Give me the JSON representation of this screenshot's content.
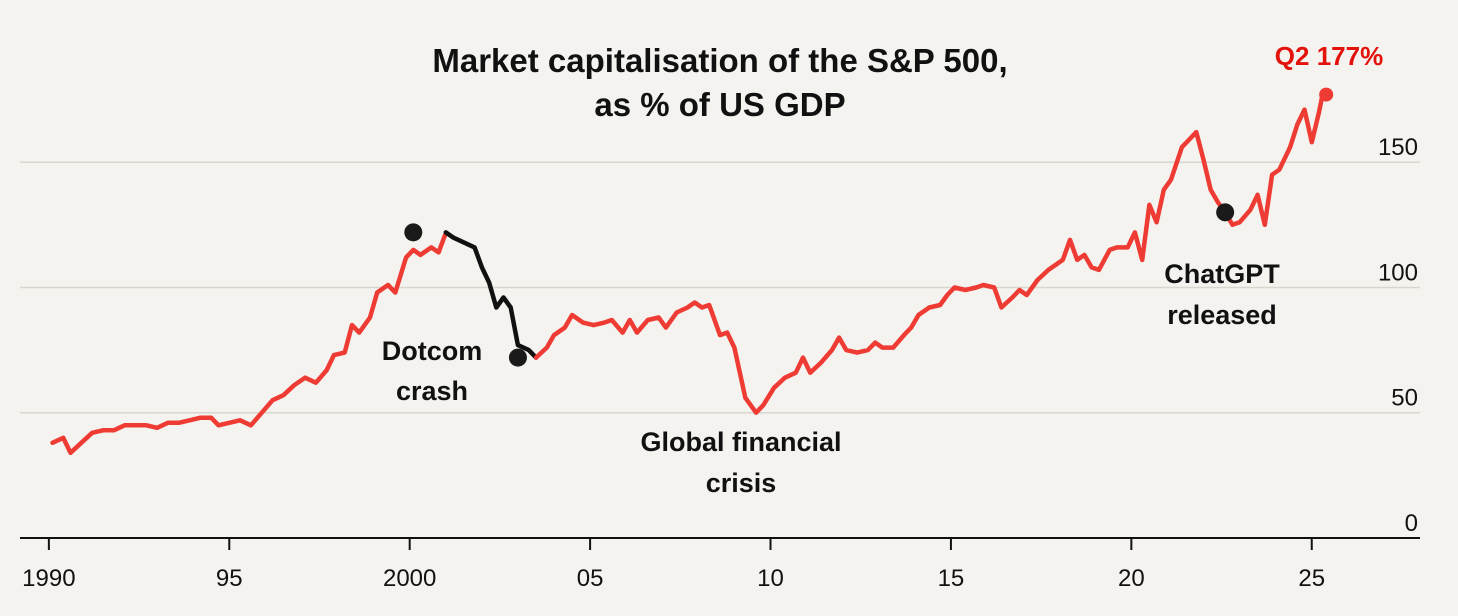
{
  "chart_data": {
    "type": "line",
    "title": [
      "Market capitalisation of the S&P 500,",
      "as % of US GDP"
    ],
    "xlabel": "",
    "ylabel": "",
    "xlim": [
      1989.2,
      2028.0
    ],
    "ylim": [
      0,
      190
    ],
    "x_ticks": [
      {
        "value": 1990,
        "label": "1990"
      },
      {
        "value": 1995,
        "label": "95"
      },
      {
        "value": 2000,
        "label": "2000"
      },
      {
        "value": 2005,
        "label": "05"
      },
      {
        "value": 2010,
        "label": "10"
      },
      {
        "value": 2015,
        "label": "15"
      },
      {
        "value": 2020,
        "label": "20"
      },
      {
        "value": 2025,
        "label": "25"
      }
    ],
    "y_ticks": [
      {
        "value": 0,
        "label": "0"
      },
      {
        "value": 50,
        "label": "50"
      },
      {
        "value": 100,
        "label": "100"
      },
      {
        "value": 150,
        "label": "150"
      }
    ],
    "grid": true,
    "colors": {
      "line": "#ee3b33",
      "highlight": "#111111",
      "peak_label": "#e3120b",
      "grid": "#d9d6d0",
      "axis": "#111111",
      "background": "#f5f3ef"
    },
    "series": [
      {
        "values": [
          [
            1990.1,
            38
          ],
          [
            1990.4,
            40
          ],
          [
            1990.6,
            34
          ],
          [
            1990.9,
            38
          ],
          [
            1991.2,
            42
          ],
          [
            1991.5,
            43
          ],
          [
            1991.8,
            43
          ],
          [
            1992.1,
            45
          ],
          [
            1992.4,
            45
          ],
          [
            1992.7,
            45
          ],
          [
            1993.0,
            44
          ],
          [
            1993.3,
            46
          ],
          [
            1993.6,
            46
          ],
          [
            1993.9,
            47
          ],
          [
            1994.2,
            48
          ],
          [
            1994.5,
            48
          ],
          [
            1994.7,
            45
          ],
          [
            1995.0,
            46
          ],
          [
            1995.3,
            47
          ],
          [
            1995.6,
            45
          ],
          [
            1995.9,
            50
          ],
          [
            1996.2,
            55
          ],
          [
            1996.5,
            57
          ],
          [
            1996.8,
            61
          ],
          [
            1997.1,
            64
          ],
          [
            1997.4,
            62
          ],
          [
            1997.7,
            67
          ],
          [
            1997.9,
            73
          ],
          [
            1998.2,
            74
          ],
          [
            1998.4,
            85
          ],
          [
            1998.6,
            82
          ],
          [
            1998.9,
            88
          ],
          [
            1999.1,
            98
          ],
          [
            1999.4,
            101
          ],
          [
            1999.6,
            98
          ],
          [
            1999.9,
            112
          ],
          [
            2000.1,
            115
          ],
          [
            2000.3,
            113
          ],
          [
            2000.6,
            116
          ],
          [
            2000.8,
            114
          ],
          [
            2000.98,
            121
          ]
        ]
      },
      {
        "values": [
          [
            2001.0,
            122
          ],
          [
            2001.2,
            120
          ],
          [
            2001.5,
            118
          ],
          [
            2001.8,
            116
          ],
          [
            2002.0,
            108
          ],
          [
            2002.2,
            102
          ],
          [
            2002.4,
            92
          ],
          [
            2002.6,
            96
          ],
          [
            2002.8,
            92
          ],
          [
            2003.0,
            77
          ],
          [
            2003.3,
            75
          ],
          [
            2003.5,
            72
          ]
        ]
      },
      {
        "values": [
          [
            2003.5,
            72
          ],
          [
            2003.8,
            76
          ],
          [
            2004.0,
            81
          ],
          [
            2004.3,
            84
          ],
          [
            2004.5,
            89
          ],
          [
            2004.8,
            86
          ],
          [
            2005.1,
            85
          ],
          [
            2005.4,
            86
          ],
          [
            2005.6,
            87
          ],
          [
            2005.9,
            82
          ],
          [
            2006.1,
            87
          ],
          [
            2006.3,
            82
          ],
          [
            2006.6,
            87
          ],
          [
            2006.9,
            88
          ],
          [
            2007.1,
            84
          ],
          [
            2007.4,
            90
          ],
          [
            2007.7,
            92
          ],
          [
            2007.9,
            94
          ],
          [
            2008.1,
            92
          ],
          [
            2008.3,
            93
          ],
          [
            2008.6,
            81
          ],
          [
            2008.8,
            82
          ],
          [
            2009.0,
            76
          ],
          [
            2009.3,
            56
          ],
          [
            2009.6,
            50
          ],
          [
            2009.8,
            53
          ],
          [
            2010.1,
            60
          ],
          [
            2010.4,
            64
          ],
          [
            2010.7,
            66
          ],
          [
            2010.9,
            72
          ],
          [
            2011.1,
            66
          ],
          [
            2011.4,
            70
          ],
          [
            2011.7,
            75
          ],
          [
            2011.9,
            80
          ],
          [
            2012.1,
            75
          ],
          [
            2012.4,
            74
          ],
          [
            2012.7,
            75
          ],
          [
            2012.9,
            78
          ],
          [
            2013.1,
            76
          ],
          [
            2013.4,
            76
          ],
          [
            2013.7,
            81
          ],
          [
            2013.9,
            84
          ],
          [
            2014.1,
            89
          ],
          [
            2014.4,
            92
          ],
          [
            2014.7,
            93
          ],
          [
            2014.9,
            97
          ],
          [
            2015.1,
            100
          ],
          [
            2015.4,
            99
          ],
          [
            2015.7,
            100
          ],
          [
            2015.9,
            101
          ],
          [
            2016.2,
            100
          ],
          [
            2016.4,
            92
          ],
          [
            2016.7,
            96
          ],
          [
            2016.9,
            99
          ],
          [
            2017.1,
            97
          ],
          [
            2017.4,
            103
          ],
          [
            2017.7,
            107
          ],
          [
            2017.9,
            109
          ],
          [
            2018.1,
            111
          ],
          [
            2018.3,
            119
          ],
          [
            2018.5,
            111
          ],
          [
            2018.7,
            113
          ],
          [
            2018.9,
            108
          ],
          [
            2019.1,
            107
          ],
          [
            2019.4,
            115
          ],
          [
            2019.6,
            116
          ],
          [
            2019.9,
            116
          ],
          [
            2020.1,
            122
          ],
          [
            2020.3,
            111
          ],
          [
            2020.5,
            133
          ],
          [
            2020.7,
            126
          ],
          [
            2020.9,
            139
          ],
          [
            2021.1,
            143
          ],
          [
            2021.4,
            156
          ],
          [
            2021.6,
            159
          ],
          [
            2021.8,
            162
          ],
          [
            2022.0,
            151
          ],
          [
            2022.2,
            139
          ],
          [
            2022.4,
            134
          ],
          [
            2022.6,
            130
          ],
          [
            2022.8,
            125
          ],
          [
            2023.0,
            126
          ],
          [
            2023.3,
            131
          ],
          [
            2023.5,
            137
          ],
          [
            2023.7,
            125
          ],
          [
            2023.9,
            145
          ],
          [
            2024.1,
            147
          ],
          [
            2024.4,
            156
          ],
          [
            2024.6,
            165
          ],
          [
            2024.8,
            171
          ],
          [
            2025.0,
            158
          ],
          [
            2025.2,
            170
          ],
          [
            2025.3,
            177
          ]
        ]
      }
    ],
    "markers": [
      {
        "x": 2000.1,
        "y": 122
      },
      {
        "x": 2003.0,
        "y": 72
      },
      {
        "x": 2022.6,
        "y": 130
      },
      {
        "x": 2025.4,
        "y": 177
      }
    ],
    "annotations": [
      {
        "lines": [
          "Dotcom",
          "crash"
        ]
      },
      {
        "lines": [
          "Global financial",
          "crisis"
        ]
      },
      {
        "lines": [
          "ChatGPT",
          "released"
        ]
      },
      {
        "lines": [
          "Q2 177%"
        ]
      }
    ]
  }
}
